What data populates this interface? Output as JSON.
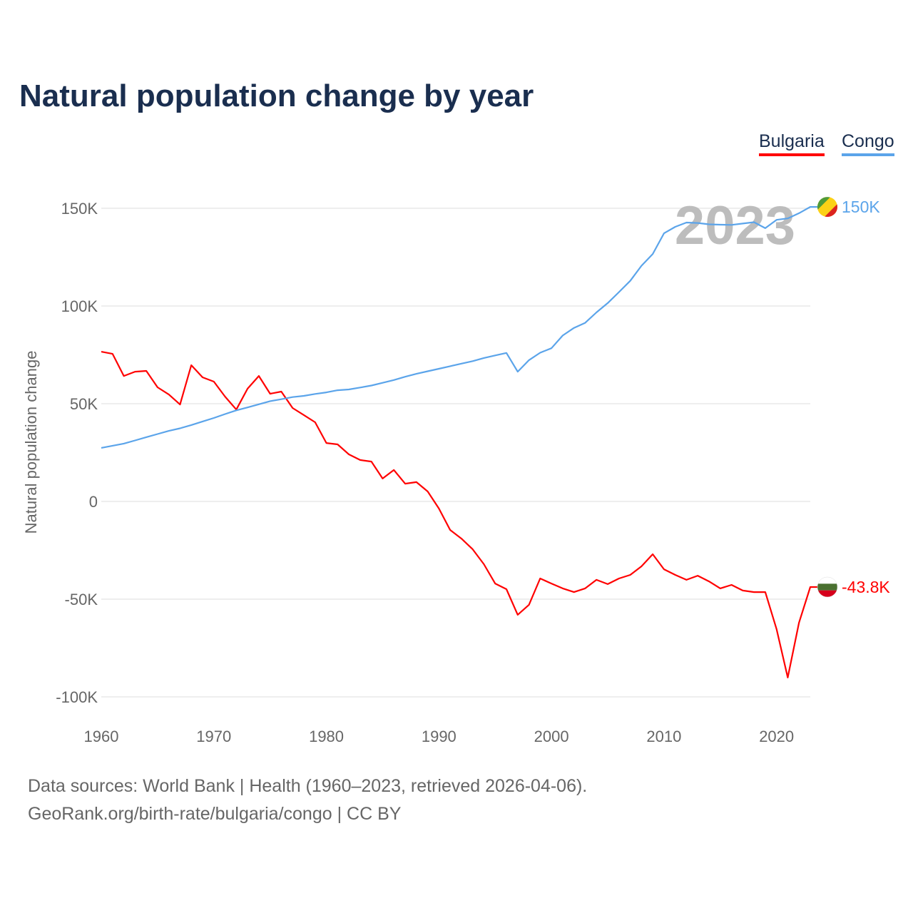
{
  "chart_data": {
    "type": "line",
    "title": "Natural population change by year",
    "xlabel": "",
    "ylabel": "Natural population change",
    "xlim": [
      1960,
      2023
    ],
    "ylim": [
      -100000,
      150000
    ],
    "x_ticks": [
      1960,
      1970,
      1980,
      1990,
      2000,
      2010,
      2020
    ],
    "y_ticks": [
      {
        "v": 150000,
        "label": "150K"
      },
      {
        "v": 100000,
        "label": "100K"
      },
      {
        "v": 50000,
        "label": "50K"
      },
      {
        "v": 0,
        "label": "0"
      },
      {
        "v": -50000,
        "label": "-50K"
      },
      {
        "v": -100000,
        "label": "-100K"
      }
    ],
    "grid": true,
    "legend_position": "top-right",
    "year_watermark": "2023",
    "x": [
      1960,
      1961,
      1962,
      1963,
      1964,
      1965,
      1966,
      1967,
      1968,
      1969,
      1970,
      1971,
      1972,
      1973,
      1974,
      1975,
      1976,
      1977,
      1978,
      1979,
      1980,
      1981,
      1982,
      1983,
      1984,
      1985,
      1986,
      1987,
      1988,
      1989,
      1990,
      1991,
      1992,
      1993,
      1994,
      1995,
      1996,
      1997,
      1998,
      1999,
      2000,
      2001,
      2002,
      2003,
      2004,
      2005,
      2006,
      2007,
      2008,
      2009,
      2010,
      2011,
      2012,
      2013,
      2014,
      2015,
      2016,
      2017,
      2018,
      2019,
      2020,
      2021,
      2022,
      2023
    ],
    "series": [
      {
        "name": "Bulgaria",
        "color": "#ff0000",
        "end_label": "-43.8K",
        "flag": [
          "#ffffff",
          "#4a7030",
          "#d6001c"
        ],
        "values": [
          76600,
          75500,
          64200,
          66400,
          66800,
          58400,
          54700,
          49600,
          69700,
          63500,
          61300,
          53600,
          47000,
          57700,
          64200,
          55100,
          56200,
          47800,
          44200,
          40500,
          29900,
          29200,
          24100,
          21200,
          20400,
          11700,
          16100,
          9100,
          9900,
          5100,
          -3600,
          -14600,
          -19000,
          -24500,
          -32100,
          -42000,
          -44900,
          -58000,
          -52900,
          -39400,
          -42000,
          -44500,
          -46400,
          -44500,
          -40100,
          -42300,
          -39400,
          -37600,
          -33200,
          -27000,
          -34700,
          -37600,
          -40100,
          -38000,
          -40900,
          -44500,
          -42700,
          -45600,
          -46400,
          -46400,
          -65300,
          -90100,
          -62000,
          -43800
        ]
      },
      {
        "name": "Congo",
        "color": "#5ba4ea",
        "end_label": "150K",
        "flag": [
          "#4f9a3a",
          "#fcd116",
          "#dc241f"
        ],
        "values": [
          27400,
          28500,
          29600,
          31200,
          32900,
          34500,
          36100,
          37400,
          39100,
          40900,
          42700,
          44700,
          46600,
          48100,
          49700,
          51300,
          52300,
          53400,
          54000,
          55000,
          55800,
          56900,
          57300,
          58300,
          59300,
          60700,
          62100,
          63800,
          65300,
          66600,
          67900,
          69200,
          70500,
          71800,
          73400,
          74700,
          76000,
          66400,
          72300,
          76100,
          78400,
          84900,
          88800,
          91400,
          96700,
          101500,
          107100,
          112900,
          120600,
          126600,
          137200,
          140500,
          142700,
          142500,
          141800,
          141600,
          141500,
          142200,
          142900,
          139800,
          144100,
          144800,
          147500,
          150700
        ]
      }
    ]
  },
  "footer": {
    "line1": "Data sources: World Bank | Health (1960–2023, retrieved 2026-04-06).",
    "line2": "GeoRank.org/birth-rate/bulgaria/congo | CC BY"
  }
}
